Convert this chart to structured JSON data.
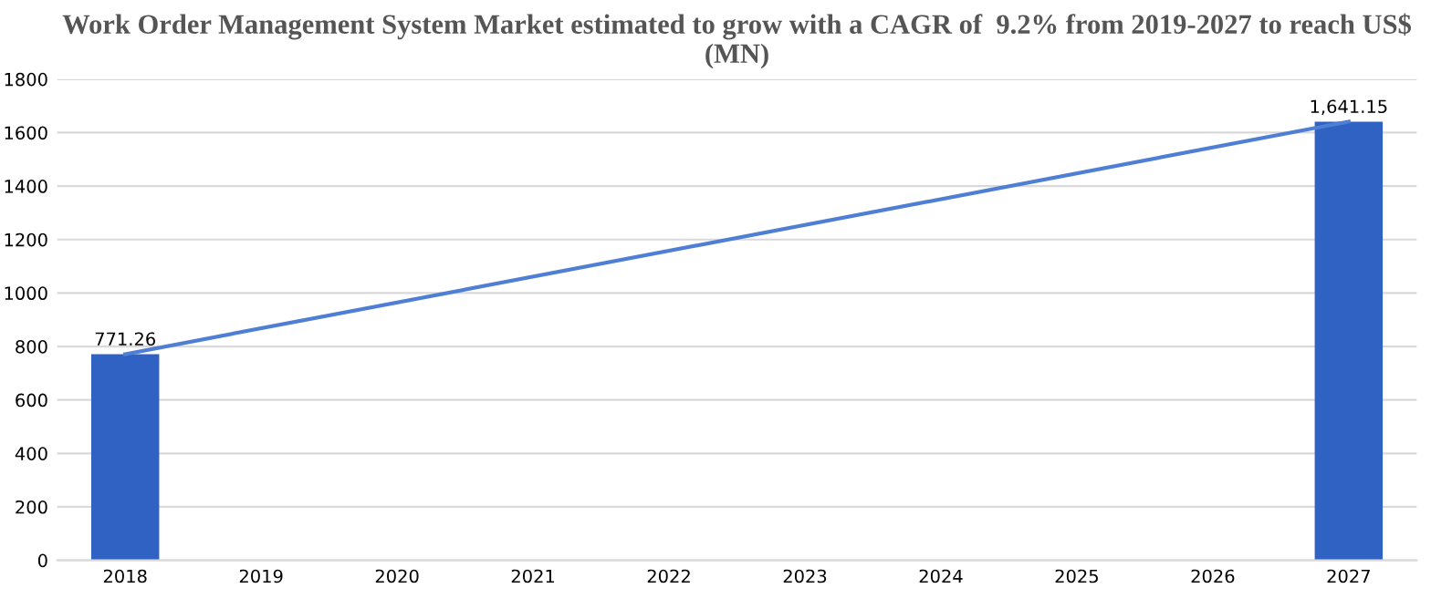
{
  "chart_data": {
    "type": "bar",
    "title": "Work Order Management System Market estimated to grow with a CAGR of  9.2% from 2019-2027 to reach US$ (MN)",
    "categories": [
      "2018",
      "2019",
      "2020",
      "2021",
      "2022",
      "2023",
      "2024",
      "2025",
      "2026",
      "2027"
    ],
    "series": [
      {
        "color": "#2f62c2",
        "values": [
          771.26,
          null,
          null,
          null,
          null,
          null,
          null,
          null,
          null,
          1641.15
        ],
        "value_labels": [
          "771.26",
          null,
          null,
          null,
          null,
          null,
          null,
          null,
          null,
          "1,641.15"
        ]
      },
      {
        "type": "line",
        "color": "#4f7fd4",
        "values": [
          771.26,
          null,
          null,
          null,
          null,
          null,
          null,
          null,
          null,
          1641.15
        ]
      }
    ],
    "ylim": [
      0,
      1800
    ],
    "yticks": [
      0,
      200,
      400,
      600,
      800,
      1000,
      1200,
      1400,
      1600,
      1800
    ],
    "grid": "y",
    "legend": false
  }
}
